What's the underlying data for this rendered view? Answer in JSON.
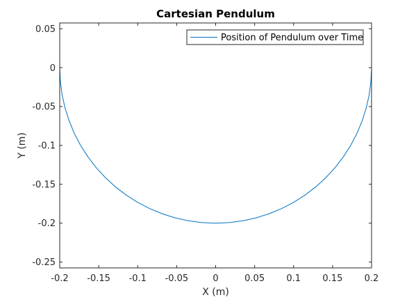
{
  "chart_data": {
    "type": "line",
    "title": "Cartesian Pendulum",
    "xlabel": "X (m)",
    "ylabel": "Y (m)",
    "xlim": [
      -0.2,
      0.2
    ],
    "ylim": [
      -0.2575,
      0.0575
    ],
    "xticks": [
      -0.2,
      -0.15,
      -0.1,
      -0.05,
      0,
      0.05,
      0.1,
      0.15,
      0.2
    ],
    "xtick_labels": [
      "-0.2",
      "-0.15",
      "-0.1",
      "-0.05",
      "0",
      "0.05",
      "0.1",
      "0.15",
      "0.2"
    ],
    "yticks": [
      0.05,
      0,
      -0.05,
      -0.1,
      -0.15,
      -0.2,
      -0.25
    ],
    "ytick_labels": [
      "0.05",
      "0",
      "-0.05",
      "-0.1",
      "-0.15",
      "-0.2",
      "-0.25"
    ],
    "grid": false,
    "legend_location": "top-right",
    "series": [
      {
        "name": "Position of Pendulum over Time",
        "color": "#0072BD",
        "x": [
          -0.2,
          -0.1992,
          -0.197,
          -0.1932,
          -0.1879,
          -0.1813,
          -0.1732,
          -0.1638,
          -0.1532,
          -0.1414,
          -0.1286,
          -0.1147,
          -0.1,
          -0.0845,
          -0.0684,
          -0.0518,
          -0.0347,
          -0.0174,
          0,
          0.0174,
          0.0347,
          0.0518,
          0.0684,
          0.0845,
          0.1,
          0.1147,
          0.1286,
          0.1414,
          0.1532,
          0.1638,
          0.1732,
          0.1813,
          0.1879,
          0.1932,
          0.197,
          0.1992,
          0.2
        ],
        "y": [
          0,
          -0.0174,
          -0.0347,
          -0.0518,
          -0.0684,
          -0.0845,
          -0.1,
          -0.1147,
          -0.1286,
          -0.1414,
          -0.1532,
          -0.1638,
          -0.1732,
          -0.1813,
          -0.1879,
          -0.1932,
          -0.197,
          -0.1992,
          -0.2,
          -0.1992,
          -0.197,
          -0.1932,
          -0.1879,
          -0.1813,
          -0.1732,
          -0.1638,
          -0.1532,
          -0.1414,
          -0.1286,
          -0.1147,
          -0.1,
          -0.0845,
          -0.0684,
          -0.0518,
          -0.0347,
          -0.0174,
          0
        ]
      }
    ]
  }
}
